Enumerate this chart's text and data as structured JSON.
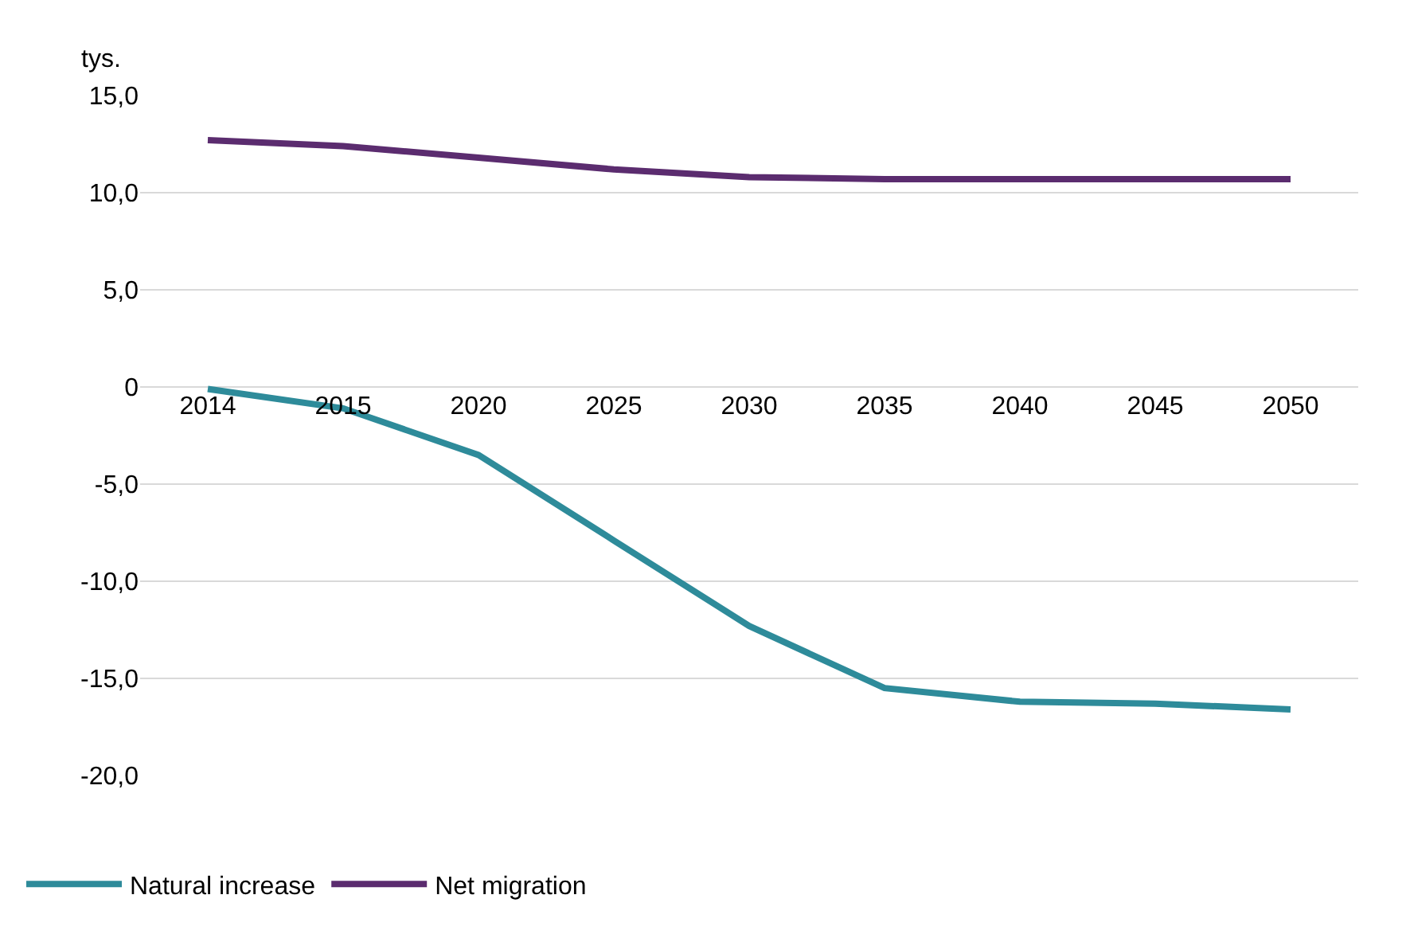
{
  "chart_data": {
    "type": "line",
    "ylabel": "tys.",
    "categories": [
      "2014",
      "2015",
      "2020",
      "2025",
      "2030",
      "2035",
      "2040",
      "2045",
      "2050"
    ],
    "series": [
      {
        "name": "Natural increase",
        "color": "#2e8b9a",
        "values": [
          -0.1,
          -1.1,
          -3.5,
          -7.9,
          -12.3,
          -15.5,
          -16.2,
          -16.3,
          -16.6
        ]
      },
      {
        "name": "Net migration",
        "color": "#5b2c6f",
        "values": [
          12.7,
          12.4,
          11.8,
          11.2,
          10.8,
          10.7,
          10.7,
          10.7,
          10.7
        ]
      }
    ],
    "ylim": [
      -20,
      15
    ],
    "yticks": [
      {
        "value": -20,
        "label": "-20,0"
      },
      {
        "value": -15,
        "label": "-15,0"
      },
      {
        "value": -10,
        "label": "-10,0"
      },
      {
        "value": -5,
        "label": "-5,0"
      },
      0,
      {
        "value": 5,
        "label": "5,0"
      },
      {
        "value": 10,
        "label": "10,0"
      },
      {
        "value": 15,
        "label": "15,0"
      }
    ],
    "grid": "y",
    "legend": "bottom left",
    "marker": "none",
    "line_style": "solid"
  }
}
